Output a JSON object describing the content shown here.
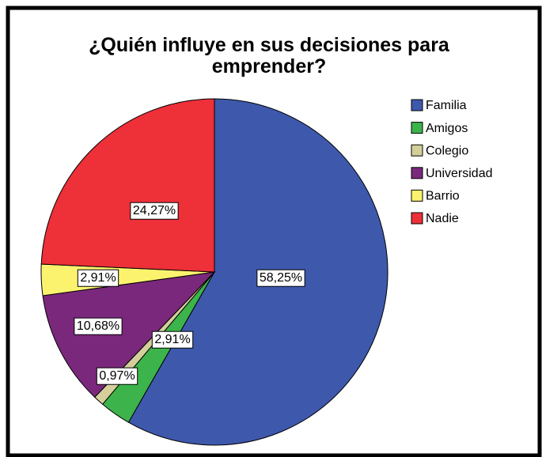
{
  "chart_data": {
    "type": "pie",
    "title": "¿Quién influye en sus decisiones para emprender?",
    "categories": [
      "Familia",
      "Amigos",
      "Colegio",
      "Universidad",
      "Barrio",
      "Nadie"
    ],
    "values": [
      58.25,
      2.91,
      0.97,
      10.68,
      2.91,
      24.27
    ],
    "value_labels": [
      "58,25%",
      "2,91%",
      "0,97%",
      "10,68%",
      "2,91%",
      "24,27%"
    ],
    "colors": [
      "#3e58ac",
      "#3cb44b",
      "#d4cf9b",
      "#7a287c",
      "#fbf36e",
      "#ee3039"
    ],
    "legend": "right"
  }
}
